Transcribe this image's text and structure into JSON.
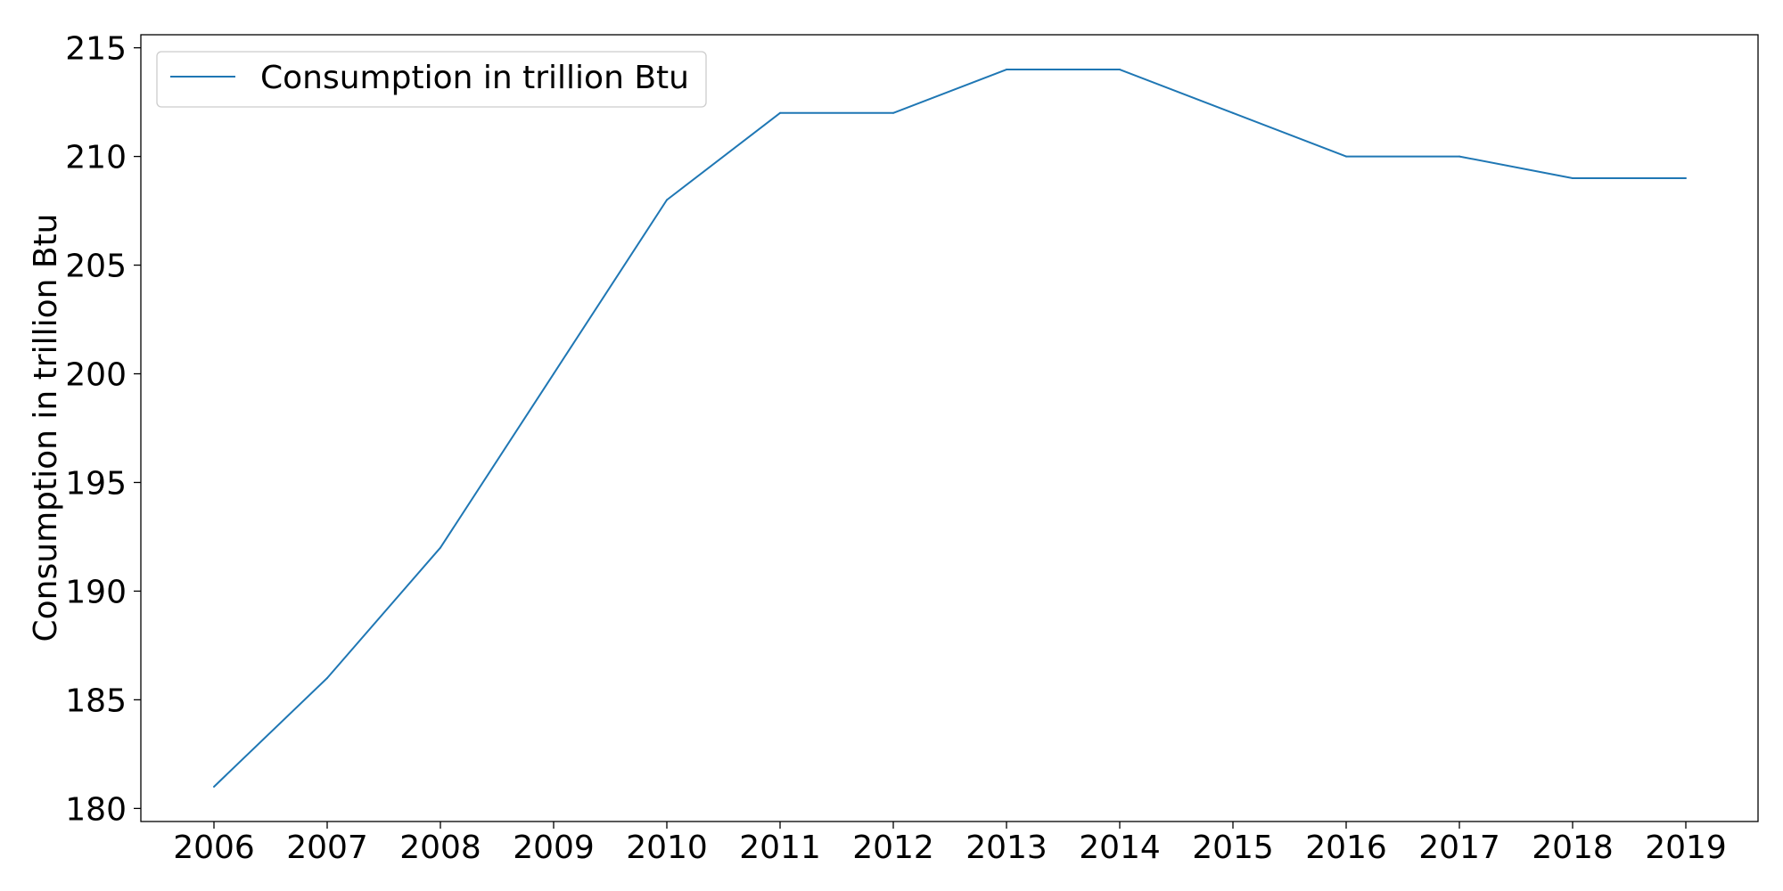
{
  "chart_data": {
    "type": "line",
    "title": "",
    "xlabel": "",
    "ylabel": "Consumption in trillion Btu",
    "x": [
      "2006",
      "2007",
      "2008",
      "2009",
      "2010",
      "2011",
      "2012",
      "2013",
      "2014",
      "2015",
      "2016",
      "2017",
      "2018",
      "2019"
    ],
    "series": [
      {
        "name": "Consumption in trillion Btu",
        "color": "#1f77b4",
        "values": [
          181,
          186,
          192,
          200,
          208,
          212,
          212,
          214,
          214,
          212,
          210,
          210,
          209,
          209
        ]
      }
    ],
    "ylim": [
      179.4,
      215.6
    ],
    "yticks": [
      180,
      185,
      190,
      195,
      200,
      205,
      210,
      215
    ],
    "grid": false,
    "legend_position": "top-left"
  }
}
